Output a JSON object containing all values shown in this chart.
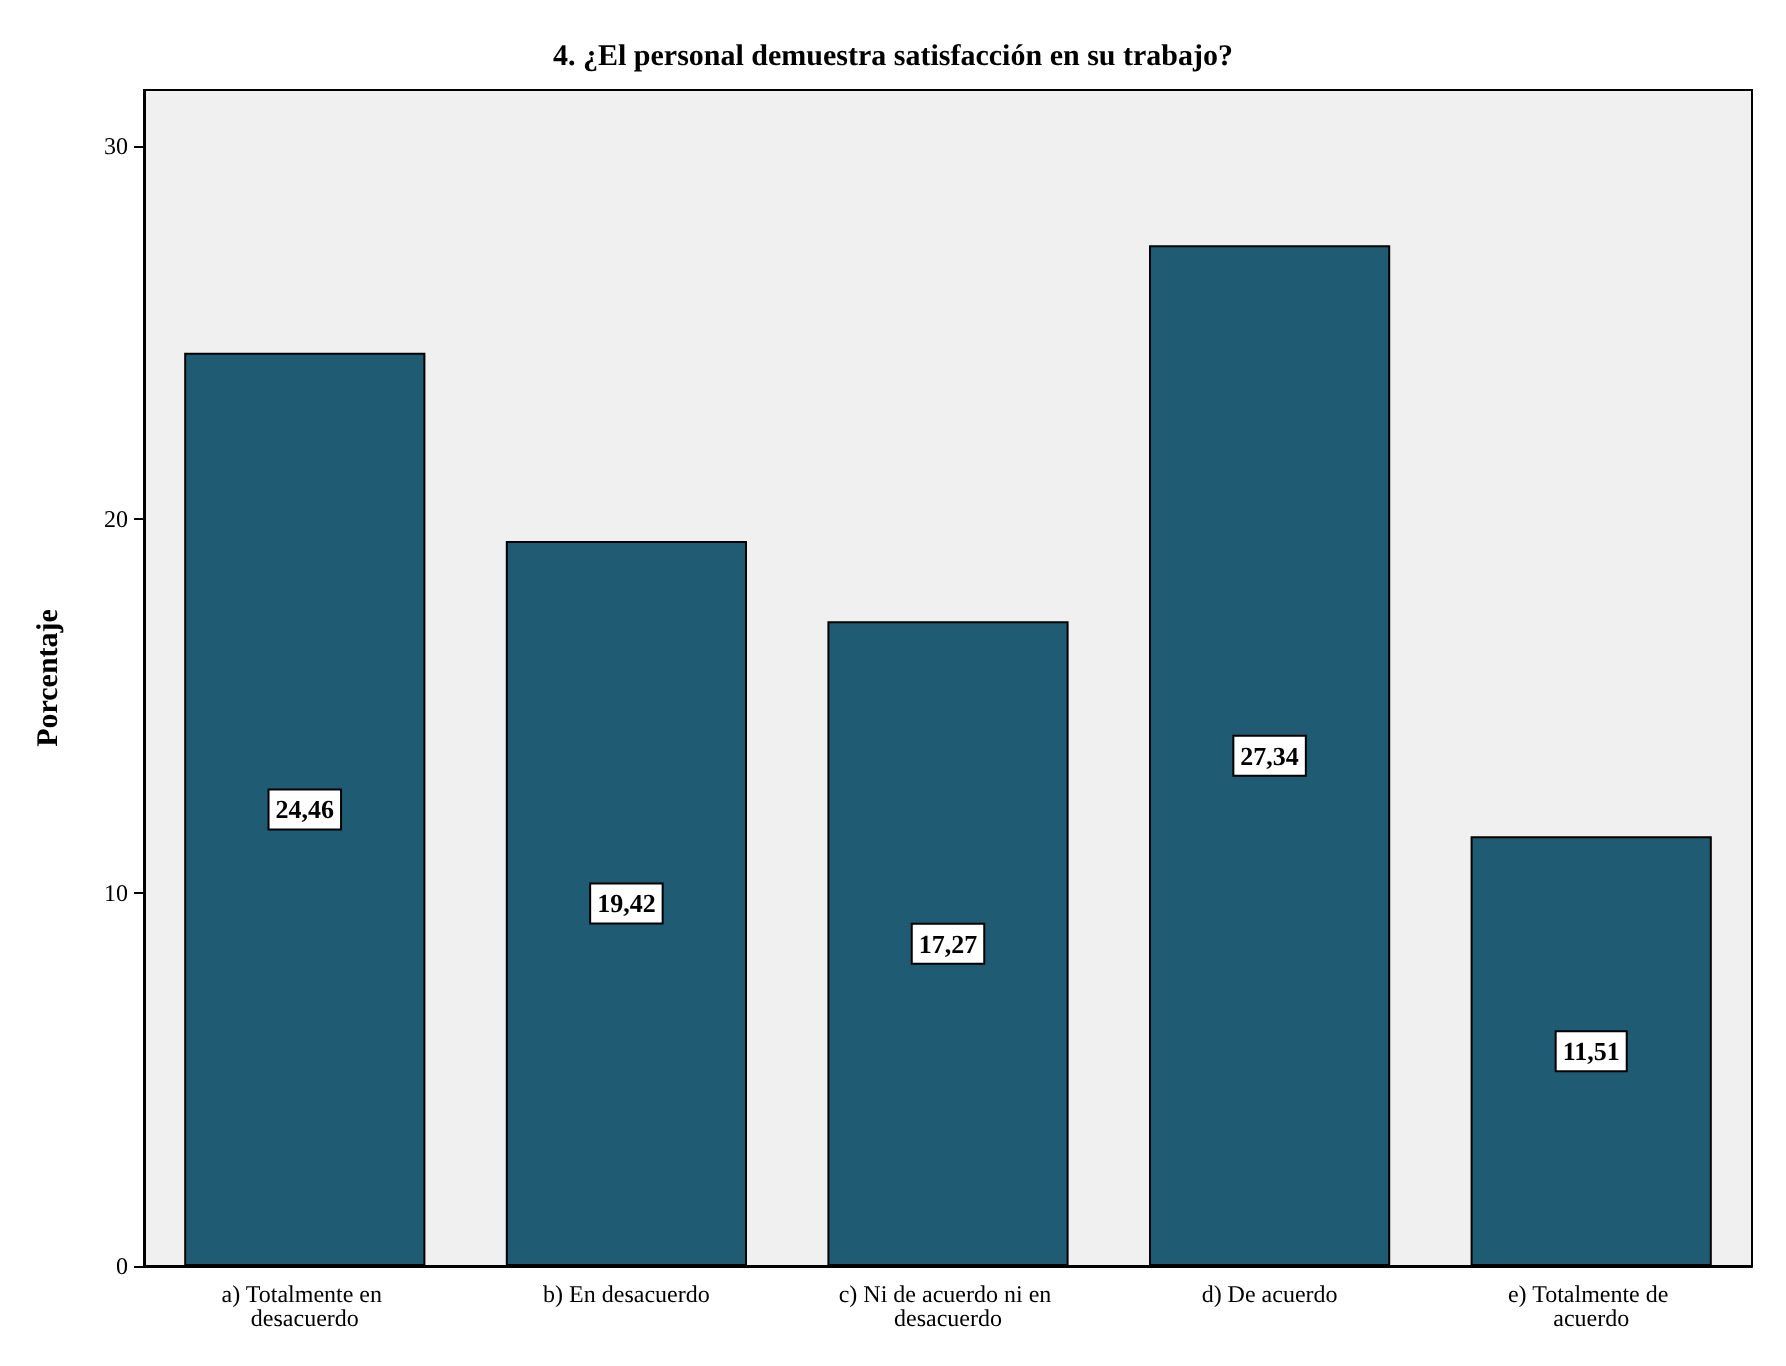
{
  "chart_data": {
    "type": "bar",
    "title": "4. ¿El personal demuestra satisfacción en su trabajo?",
    "ylabel": "Porcentaje",
    "categories": [
      "a) Totalmente en desacuerdo",
      "b) En desacuerdo",
      "c) Ni de acuerdo ni en desacuerdo",
      "d) De acuerdo",
      "e) Totalmente de acuerdo"
    ],
    "values": [
      24.46,
      19.42,
      17.27,
      27.34,
      11.51
    ],
    "value_labels": [
      "24,46",
      "19,42",
      "17,27",
      "27,34",
      "11,51"
    ],
    "color": "#1f5c73",
    "ylim": [
      0,
      31.5
    ],
    "yticks": [
      0,
      10,
      20,
      30
    ],
    "grid": false
  }
}
